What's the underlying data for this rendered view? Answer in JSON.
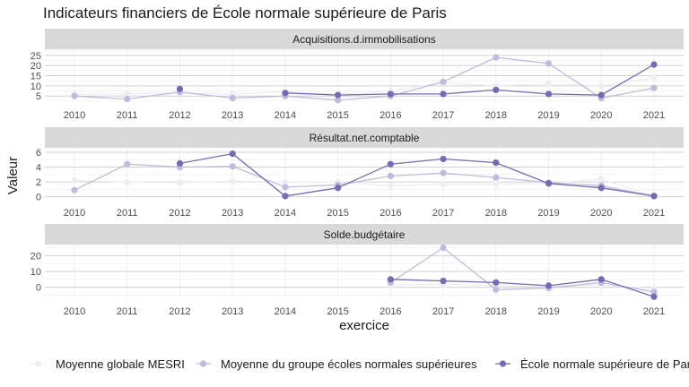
{
  "chart_data": {
    "type": "line",
    "title": "Indicateurs financiers de École normale supérieure de Paris",
    "xlabel": "exercice",
    "ylabel": "Valeur",
    "x": [
      2010,
      2011,
      2012,
      2013,
      2014,
      2015,
      2016,
      2017,
      2018,
      2019,
      2020,
      2021
    ],
    "legend_position": "bottom",
    "series_names": [
      "Moyenne globale MESRI",
      "Moyenne du groupe écoles normales supérieures",
      "École normale supérieure de Paris"
    ],
    "series_colors": [
      "#eeedf6",
      "#bcbddc",
      "#756bb1"
    ],
    "panels": [
      {
        "strip": "Acquisitions.d.immobilisations",
        "ylim": [
          2,
          28
        ],
        "yticks": [
          5,
          10,
          15,
          20,
          25
        ],
        "series": [
          {
            "values": [
              6,
              6,
              6.5,
              6,
              7,
              6,
              7.5,
              11.5,
              10,
              11,
              10,
              14
            ]
          },
          {
            "values": [
              5,
              3.5,
              7,
              4,
              5,
              3,
              5,
              12,
              24,
              21,
              4,
              9
            ]
          },
          {
            "values": [
              null,
              null,
              8.5,
              null,
              6.5,
              5.5,
              6,
              6,
              8,
              6,
              5.5,
              20.5
            ]
          }
        ]
      },
      {
        "strip": "Résultat.net.comptable",
        "ylim": [
          -0.4,
          6.6
        ],
        "yticks": [
          0,
          2,
          4,
          6
        ],
        "series": [
          {
            "values": [
              2.2,
              2.0,
              1.9,
              2.1,
              2.0,
              2.0,
              1.5,
              1.7,
              1.7,
              1.8,
              2.4,
              0.1
            ]
          },
          {
            "values": [
              0.9,
              4.4,
              4.0,
              4.1,
              1.3,
              1.6,
              2.8,
              3.2,
              2.6,
              1.9,
              1.5,
              0.1
            ]
          },
          {
            "values": [
              null,
              null,
              4.5,
              5.8,
              0.1,
              1.2,
              4.4,
              5.1,
              4.6,
              1.8,
              1.2,
              0.1
            ]
          }
        ]
      },
      {
        "strip": "Solde.budgétaire",
        "ylim": [
          -7,
          27
        ],
        "yticks": [
          0,
          10,
          20
        ],
        "series": [
          {
            "values": [
              null,
              null,
              null,
              null,
              null,
              null,
              1.5,
              2.0,
              1.0,
              0.5,
              1.5,
              -1.0
            ]
          },
          {
            "values": [
              null,
              null,
              null,
              null,
              null,
              null,
              3.0,
              25.0,
              -1.5,
              -0.5,
              3.0,
              -3.0
            ]
          },
          {
            "values": [
              null,
              null,
              null,
              null,
              null,
              null,
              5.0,
              4.0,
              3.0,
              1.0,
              5.0,
              -6.0
            ]
          }
        ]
      }
    ]
  }
}
